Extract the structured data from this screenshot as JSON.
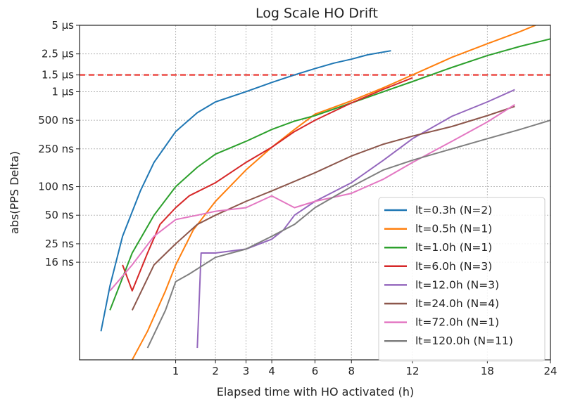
{
  "chart_data": {
    "type": "line",
    "title": "Log Scale HO Drift",
    "xlabel": "Elapsed time with HO activated (h)",
    "ylabel": "abs(PPS Delta)",
    "x_scale": "sqrt",
    "y_scale": "log",
    "xlim": [
      0,
      24
    ],
    "ylim_ns": [
      1.5,
      5000
    ],
    "x_ticks": [
      {
        "value": 1,
        "label": "1"
      },
      {
        "value": 2,
        "label": "2"
      },
      {
        "value": 3,
        "label": "3"
      },
      {
        "value": 4,
        "label": "4"
      },
      {
        "value": 6,
        "label": "6"
      },
      {
        "value": 8,
        "label": "8"
      },
      {
        "value": 12,
        "label": "12"
      },
      {
        "value": 18,
        "label": "18"
      },
      {
        "value": 24,
        "label": "24"
      }
    ],
    "y_ticks": [
      {
        "value": 5000,
        "label": "5 µs"
      },
      {
        "value": 2500,
        "label": "2.5 µs"
      },
      {
        "value": 1500,
        "label": "1.5 µs"
      },
      {
        "value": 1000,
        "label": "1 µs"
      },
      {
        "value": 500,
        "label": "500 ns"
      },
      {
        "value": 250,
        "label": "250 ns"
      },
      {
        "value": 100,
        "label": "100 ns"
      },
      {
        "value": 50,
        "label": "50 ns"
      },
      {
        "value": 25,
        "label": "25 ns"
      },
      {
        "value": 16,
        "label": "16 ns"
      }
    ],
    "grid": true,
    "legend_position": "bottom-right",
    "threshold": {
      "value": 1500,
      "color": "#e8231c",
      "style": "dashed"
    },
    "series": [
      {
        "name": "lt=0.3h (N=2)",
        "color": "#1f77b4",
        "points": [
          [
            0.05,
            3
          ],
          [
            0.1,
            9
          ],
          [
            0.2,
            30
          ],
          [
            0.4,
            90
          ],
          [
            0.6,
            180
          ],
          [
            1,
            380
          ],
          [
            1.5,
            600
          ],
          [
            2,
            780
          ],
          [
            3,
            1000
          ],
          [
            4,
            1250
          ],
          [
            5,
            1500
          ],
          [
            6,
            1750
          ],
          [
            7,
            2000
          ],
          [
            8,
            2200
          ],
          [
            9,
            2450
          ],
          [
            10.5,
            2700
          ]
        ]
      },
      {
        "name": "lt=0.5h (N=1)",
        "color": "#ff7f0e",
        "points": [
          [
            0.3,
            1.5
          ],
          [
            0.5,
            3
          ],
          [
            0.8,
            8
          ],
          [
            1,
            15
          ],
          [
            1.4,
            35
          ],
          [
            2,
            70
          ],
          [
            3,
            150
          ],
          [
            4,
            260
          ],
          [
            5,
            400
          ],
          [
            6,
            580
          ],
          [
            8,
            800
          ],
          [
            10,
            1100
          ],
          [
            12,
            1500
          ],
          [
            15,
            2300
          ],
          [
            18,
            3200
          ],
          [
            21,
            4300
          ],
          [
            22.5,
            5000
          ]
        ]
      },
      {
        "name": "lt=1.0h (N=1)",
        "color": "#2ca02c",
        "points": [
          [
            0.1,
            5
          ],
          [
            0.3,
            20
          ],
          [
            0.6,
            50
          ],
          [
            1,
            100
          ],
          [
            1.5,
            160
          ],
          [
            2,
            220
          ],
          [
            3,
            300
          ],
          [
            4,
            400
          ],
          [
            5,
            490
          ],
          [
            6,
            560
          ],
          [
            8,
            760
          ],
          [
            10,
            1000
          ],
          [
            12,
            1280
          ],
          [
            15,
            1800
          ],
          [
            18,
            2400
          ],
          [
            21,
            3000
          ],
          [
            24,
            3600
          ]
        ]
      },
      {
        "name": "lt=6.0h (N=3)",
        "color": "#d62728",
        "points": [
          [
            0.2,
            15
          ],
          [
            0.3,
            8
          ],
          [
            0.5,
            20
          ],
          [
            0.7,
            40
          ],
          [
            1,
            60
          ],
          [
            1.3,
            80
          ],
          [
            2,
            110
          ],
          [
            3,
            180
          ],
          [
            4,
            260
          ],
          [
            5,
            380
          ],
          [
            6,
            500
          ],
          [
            8,
            760
          ],
          [
            10,
            1060
          ],
          [
            12,
            1400
          ]
        ]
      },
      {
        "name": "lt=12.0h (N=3)",
        "color": "#9467bd",
        "points": [
          [
            1.5,
            2
          ],
          [
            1.6,
            20
          ],
          [
            2,
            20
          ],
          [
            3,
            22
          ],
          [
            4,
            28
          ],
          [
            4.5,
            35
          ],
          [
            5,
            50
          ],
          [
            6,
            70
          ],
          [
            8,
            110
          ],
          [
            10,
            190
          ],
          [
            12,
            320
          ],
          [
            15,
            550
          ],
          [
            18,
            780
          ],
          [
            20.5,
            1050
          ]
        ]
      },
      {
        "name": "lt=24.0h (N=4)",
        "color": "#8c564b",
        "points": [
          [
            0.3,
            5
          ],
          [
            0.6,
            15
          ],
          [
            1,
            25
          ],
          [
            1.5,
            40
          ],
          [
            2,
            50
          ],
          [
            3,
            70
          ],
          [
            4,
            90
          ],
          [
            6,
            140
          ],
          [
            8,
            210
          ],
          [
            10,
            280
          ],
          [
            12,
            340
          ],
          [
            15,
            430
          ],
          [
            18,
            560
          ],
          [
            20.5,
            700
          ]
        ]
      },
      {
        "name": "lt=72.0h (N=1)",
        "color": "#e377c2",
        "points": [
          [
            0.1,
            8
          ],
          [
            0.3,
            15
          ],
          [
            0.6,
            30
          ],
          [
            1,
            45
          ],
          [
            1.5,
            50
          ],
          [
            2,
            55
          ],
          [
            3,
            60
          ],
          [
            4,
            80
          ],
          [
            5,
            60
          ],
          [
            6,
            70
          ],
          [
            8,
            85
          ],
          [
            10,
            120
          ],
          [
            12,
            180
          ],
          [
            15,
            300
          ],
          [
            18,
            480
          ],
          [
            20.5,
            730
          ]
        ]
      },
      {
        "name": "lt=120.0h (N=11)",
        "color": "#7f7f7f",
        "points": [
          [
            0.5,
            2
          ],
          [
            0.8,
            5
          ],
          [
            1,
            10
          ],
          [
            1.3,
            12
          ],
          [
            2,
            18
          ],
          [
            3,
            22
          ],
          [
            4,
            30
          ],
          [
            5,
            40
          ],
          [
            6,
            60
          ],
          [
            8,
            100
          ],
          [
            10,
            150
          ],
          [
            12,
            190
          ],
          [
            15,
            250
          ],
          [
            18,
            320
          ],
          [
            21,
            400
          ],
          [
            24,
            500
          ]
        ]
      }
    ]
  }
}
